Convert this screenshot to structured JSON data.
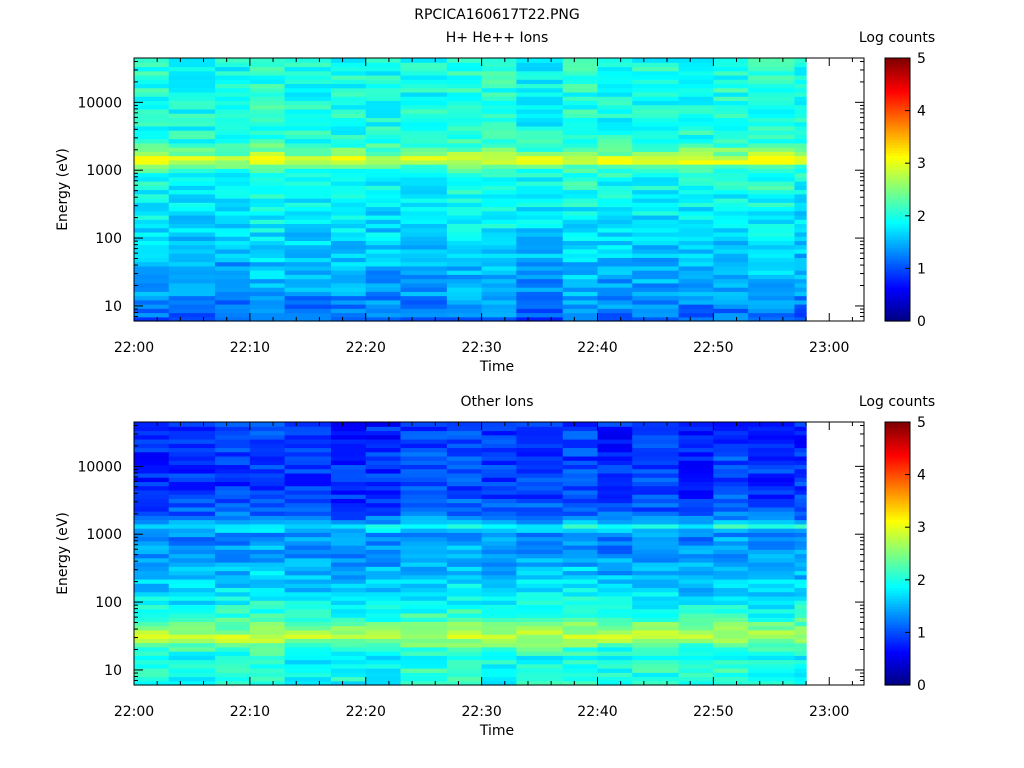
{
  "figure_title": "RPCICA160617T22.PNG",
  "colormap": [
    "#00007f",
    "#0000ff",
    "#007fff",
    "#00ffff",
    "#7fff7f",
    "#ffff00",
    "#ff7f00",
    "#ff0000",
    "#7f0000"
  ],
  "chart_data": [
    {
      "type": "heatmap",
      "title": "H+ He++ Ions",
      "xlabel": "Time",
      "ylabel": "Energy (eV)",
      "yscale": "log",
      "xlim": [
        "22:00",
        "23:03"
      ],
      "ylim": [
        6,
        45000
      ],
      "x_ticks": [
        "22:00",
        "22:10",
        "22:20",
        "22:30",
        "22:40",
        "22:50",
        "23:00"
      ],
      "y_ticks": [
        "10",
        "100",
        "1000",
        "10000"
      ],
      "time_bins": [
        "22:00",
        "22:03",
        "22:07",
        "22:10",
        "22:13",
        "22:17",
        "22:20",
        "22:23",
        "22:27",
        "22:30",
        "22:33",
        "22:37",
        "22:40",
        "22:43",
        "22:47",
        "22:50",
        "22:53",
        "22:57"
      ],
      "data_end": "22:58",
      "colorbar": {
        "label": "Log counts",
        "min": 0,
        "max": 5,
        "ticks": [
          "0",
          "1",
          "2",
          "3",
          "4",
          "5"
        ]
      },
      "profile": {
        "energy_eV": [
          6,
          10,
          20,
          50,
          100,
          300,
          800,
          1100,
          1400,
          1700,
          2500,
          5000,
          10000,
          45000
        ],
        "log_counts": [
          1.1,
          1.3,
          1.45,
          1.6,
          1.7,
          1.85,
          2.0,
          2.2,
          3.1,
          2.6,
          2.1,
          2.0,
          2.0,
          2.0
        ]
      }
    },
    {
      "type": "heatmap",
      "title": "Other Ions",
      "xlabel": "Time",
      "ylabel": "Energy (eV)",
      "yscale": "log",
      "xlim": [
        "22:00",
        "23:03"
      ],
      "ylim": [
        6,
        45000
      ],
      "x_ticks": [
        "22:00",
        "22:10",
        "22:20",
        "22:30",
        "22:40",
        "22:50",
        "23:00"
      ],
      "y_ticks": [
        "10",
        "100",
        "1000",
        "10000"
      ],
      "time_bins": [
        "22:00",
        "22:03",
        "22:07",
        "22:10",
        "22:13",
        "22:17",
        "22:20",
        "22:23",
        "22:27",
        "22:30",
        "22:33",
        "22:37",
        "22:40",
        "22:43",
        "22:47",
        "22:50",
        "22:53",
        "22:57"
      ],
      "data_end": "22:58",
      "colorbar": {
        "label": "Log counts",
        "min": 0,
        "max": 5,
        "ticks": [
          "0",
          "1",
          "2",
          "3",
          "4",
          "5"
        ]
      },
      "profile": {
        "energy_eV": [
          6,
          10,
          15,
          22,
          30,
          45,
          70,
          150,
          500,
          1000,
          1300,
          1600,
          2500,
          5000,
          10000,
          45000
        ],
        "log_counts": [
          2.0,
          2.0,
          1.9,
          2.2,
          2.8,
          2.4,
          2.0,
          1.7,
          1.4,
          1.3,
          2.0,
          1.3,
          1.0,
          0.9,
          0.9,
          0.85
        ]
      }
    }
  ]
}
